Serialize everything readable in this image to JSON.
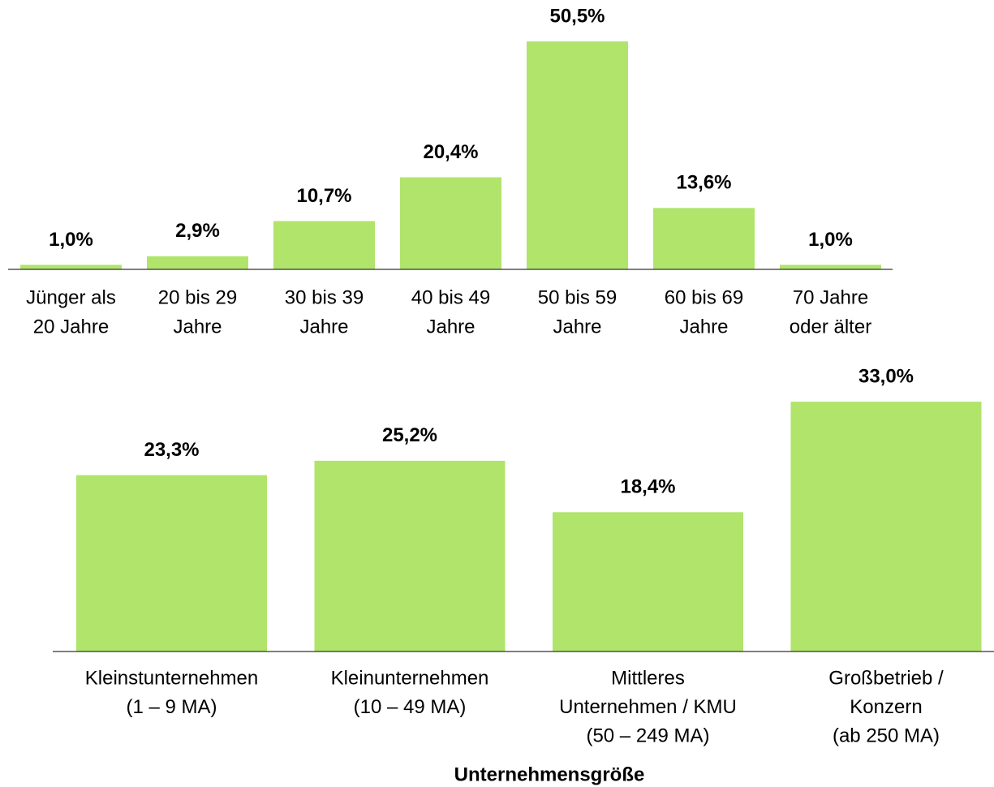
{
  "chart_data": [
    {
      "type": "bar",
      "color": "#b1e46b",
      "categories": [
        [
          "Jünger als",
          "20 Jahre"
        ],
        [
          "20 bis 29",
          "Jahre"
        ],
        [
          "30 bis 39",
          "Jahre"
        ],
        [
          "40 bis 49",
          "Jahre"
        ],
        [
          "50 bis 59",
          "Jahre"
        ],
        [
          "60 bis 69",
          "Jahre"
        ],
        [
          "70 Jahre",
          "oder älter"
        ]
      ],
      "values": [
        1.0,
        2.9,
        10.7,
        20.4,
        50.5,
        13.6,
        1.0
      ],
      "value_labels": [
        "1,0%",
        "2,9%",
        "10,7%",
        "20,4%",
        "50,5%",
        "13,6%",
        "1,0%"
      ]
    },
    {
      "type": "bar",
      "color": "#b1e46b",
      "x_label": "Unternehmensgröße",
      "categories": [
        [
          "Kleinstunternehmen",
          "(1 – 9 MA)"
        ],
        [
          "Kleinunternehmen",
          "(10 – 49 MA)"
        ],
        [
          "Mittleres",
          "Unternehmen / KMU",
          "(50 – 249 MA)"
        ],
        [
          "Großbetrieb /",
          "Konzern",
          "(ab 250 MA)"
        ]
      ],
      "values": [
        23.3,
        25.2,
        18.4,
        33.0
      ],
      "value_labels": [
        "23,3%",
        "25,2%",
        "18,4%",
        "33,0%"
      ]
    }
  ]
}
